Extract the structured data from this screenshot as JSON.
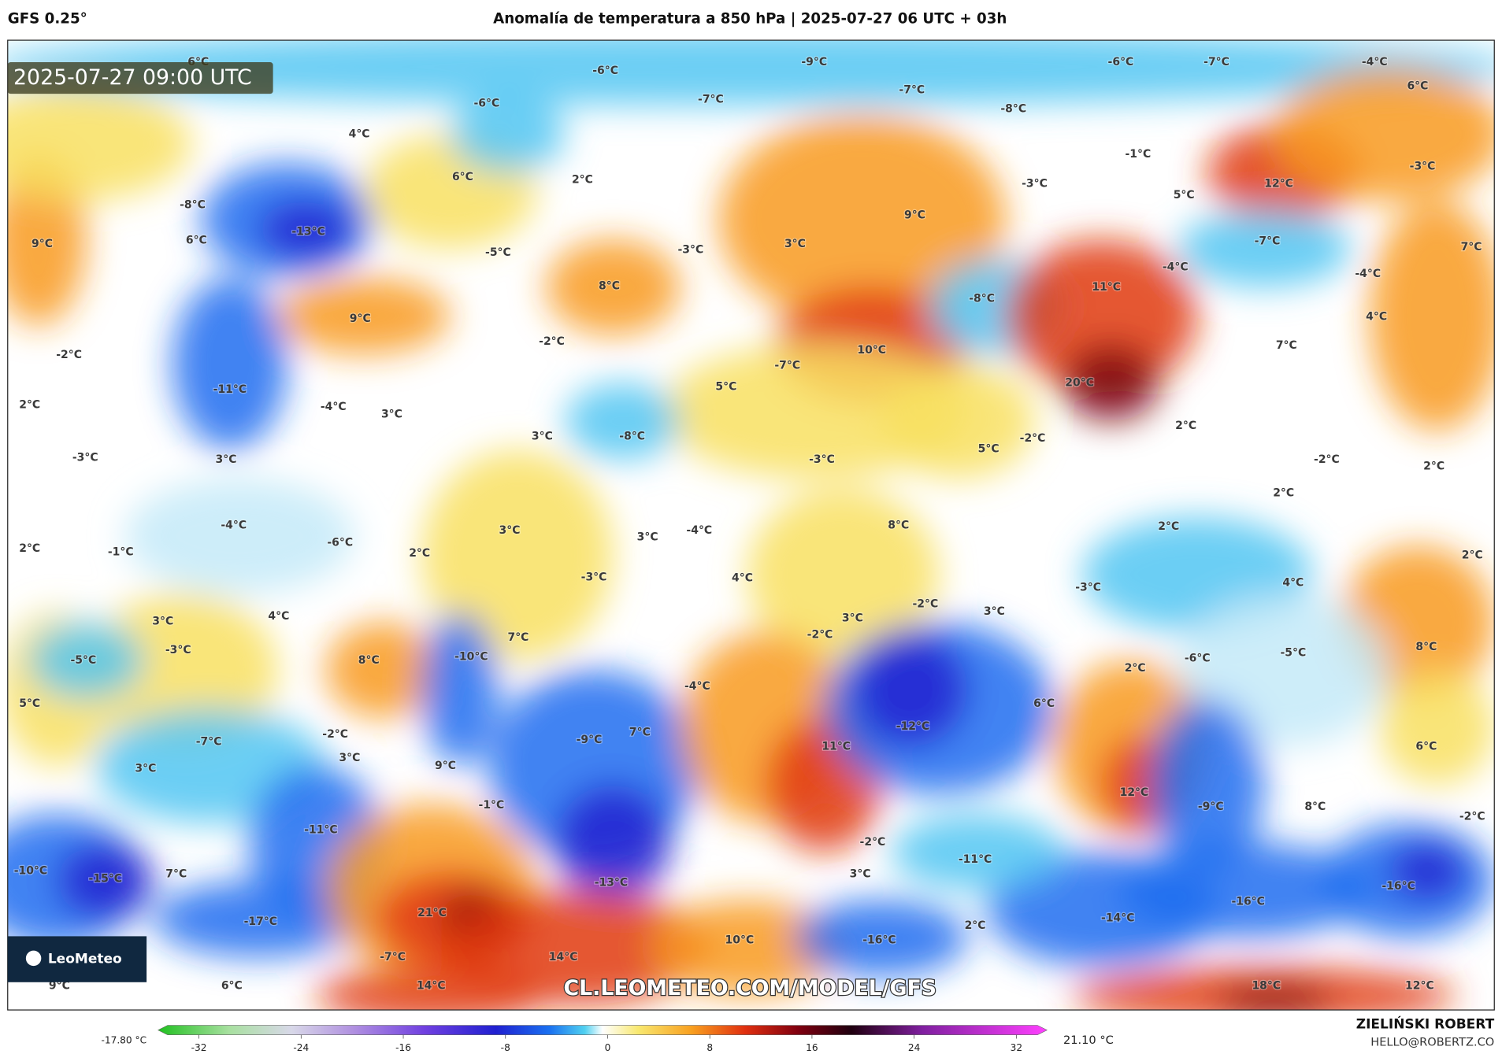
{
  "header": {
    "model": "GFS 0.25°",
    "title": "Anomalía de temperatura a 850 hPa | 2025-07-27 06 UTC + 03h"
  },
  "map": {
    "timestamp": "2025-07-27 09:00 UTC",
    "logo": "LeoMeteo",
    "watermark": "CL.LEOMETEO.COM/MODEL/GFS",
    "labels": [
      "6°C",
      "-6°C",
      "-9°C",
      "-6°C",
      "-7°C",
      "-4°C",
      "6°C",
      "-6°C",
      "-7°C",
      "-7°C",
      "-8°C",
      "4°C",
      "6°C",
      "2°C",
      "-1°C",
      "-3°C",
      "12°C",
      "-3°C",
      "-8°C",
      "5°C",
      "-13°C",
      "9°C",
      "9°C",
      "6°C",
      "-5°C",
      "-3°C",
      "3°C",
      "-7°C",
      "-4°C",
      "7°C",
      "8°C",
      "11°C",
      "-4°C",
      "-8°C",
      "9°C",
      "4°C",
      "-2°C",
      "-2°C",
      "10°C",
      "7°C",
      "-7°C",
      "-11°C",
      "5°C",
      "20°C",
      "2°C",
      "-4°C",
      "3°C",
      "2°C",
      "3°C",
      "-8°C",
      "-2°C",
      "5°C",
      "-3°C",
      "3°C",
      "-3°C",
      "-2°C",
      "2°C",
      "2°C",
      "-4°C",
      "3°C",
      "3°C",
      "-4°C",
      "8°C",
      "2°C",
      "-6°C",
      "2°C",
      "-1°C",
      "2°C",
      "2°C",
      "-3°C",
      "4°C",
      "-3°C",
      "4°C",
      "-2°C",
      "3°C",
      "3°C",
      "4°C",
      "3°C",
      "-2°C",
      "7°C",
      "-3°C",
      "-5°C",
      "8°C",
      "-10°C",
      "2°C",
      "-6°C",
      "-5°C",
      "8°C",
      "-4°C",
      "5°C",
      "6°C",
      "-12°C",
      "-2°C",
      "7°C",
      "-7°C",
      "-9°C",
      "11°C",
      "6°C",
      "3°C",
      "3°C",
      "9°C",
      "-1°C",
      "12°C",
      "-9°C",
      "8°C",
      "-2°C",
      "-11°C",
      "-2°C",
      "-11°C",
      "-10°C",
      "-15°C",
      "7°C",
      "3°C",
      "-13°C",
      "-16°C",
      "-16°C",
      "21°C",
      "-17°C",
      "-14°C",
      "2°C",
      "10°C",
      "-16°C",
      "14°C",
      "-7°C",
      "9°C",
      "6°C",
      "14°C",
      "18°C",
      "12°C"
    ]
  },
  "colorbar": {
    "min_label": "-17.80 °C",
    "max_label": "21.10 °C",
    "range": [
      -35.2,
      34.4
    ],
    "ticks": [
      -32,
      -24,
      -16,
      -8,
      0,
      8,
      16,
      24,
      32
    ]
  },
  "footer": {
    "author": "ZIELIŃSKI ROBERT",
    "email": "HELLO@ROBERTZ.CO"
  }
}
